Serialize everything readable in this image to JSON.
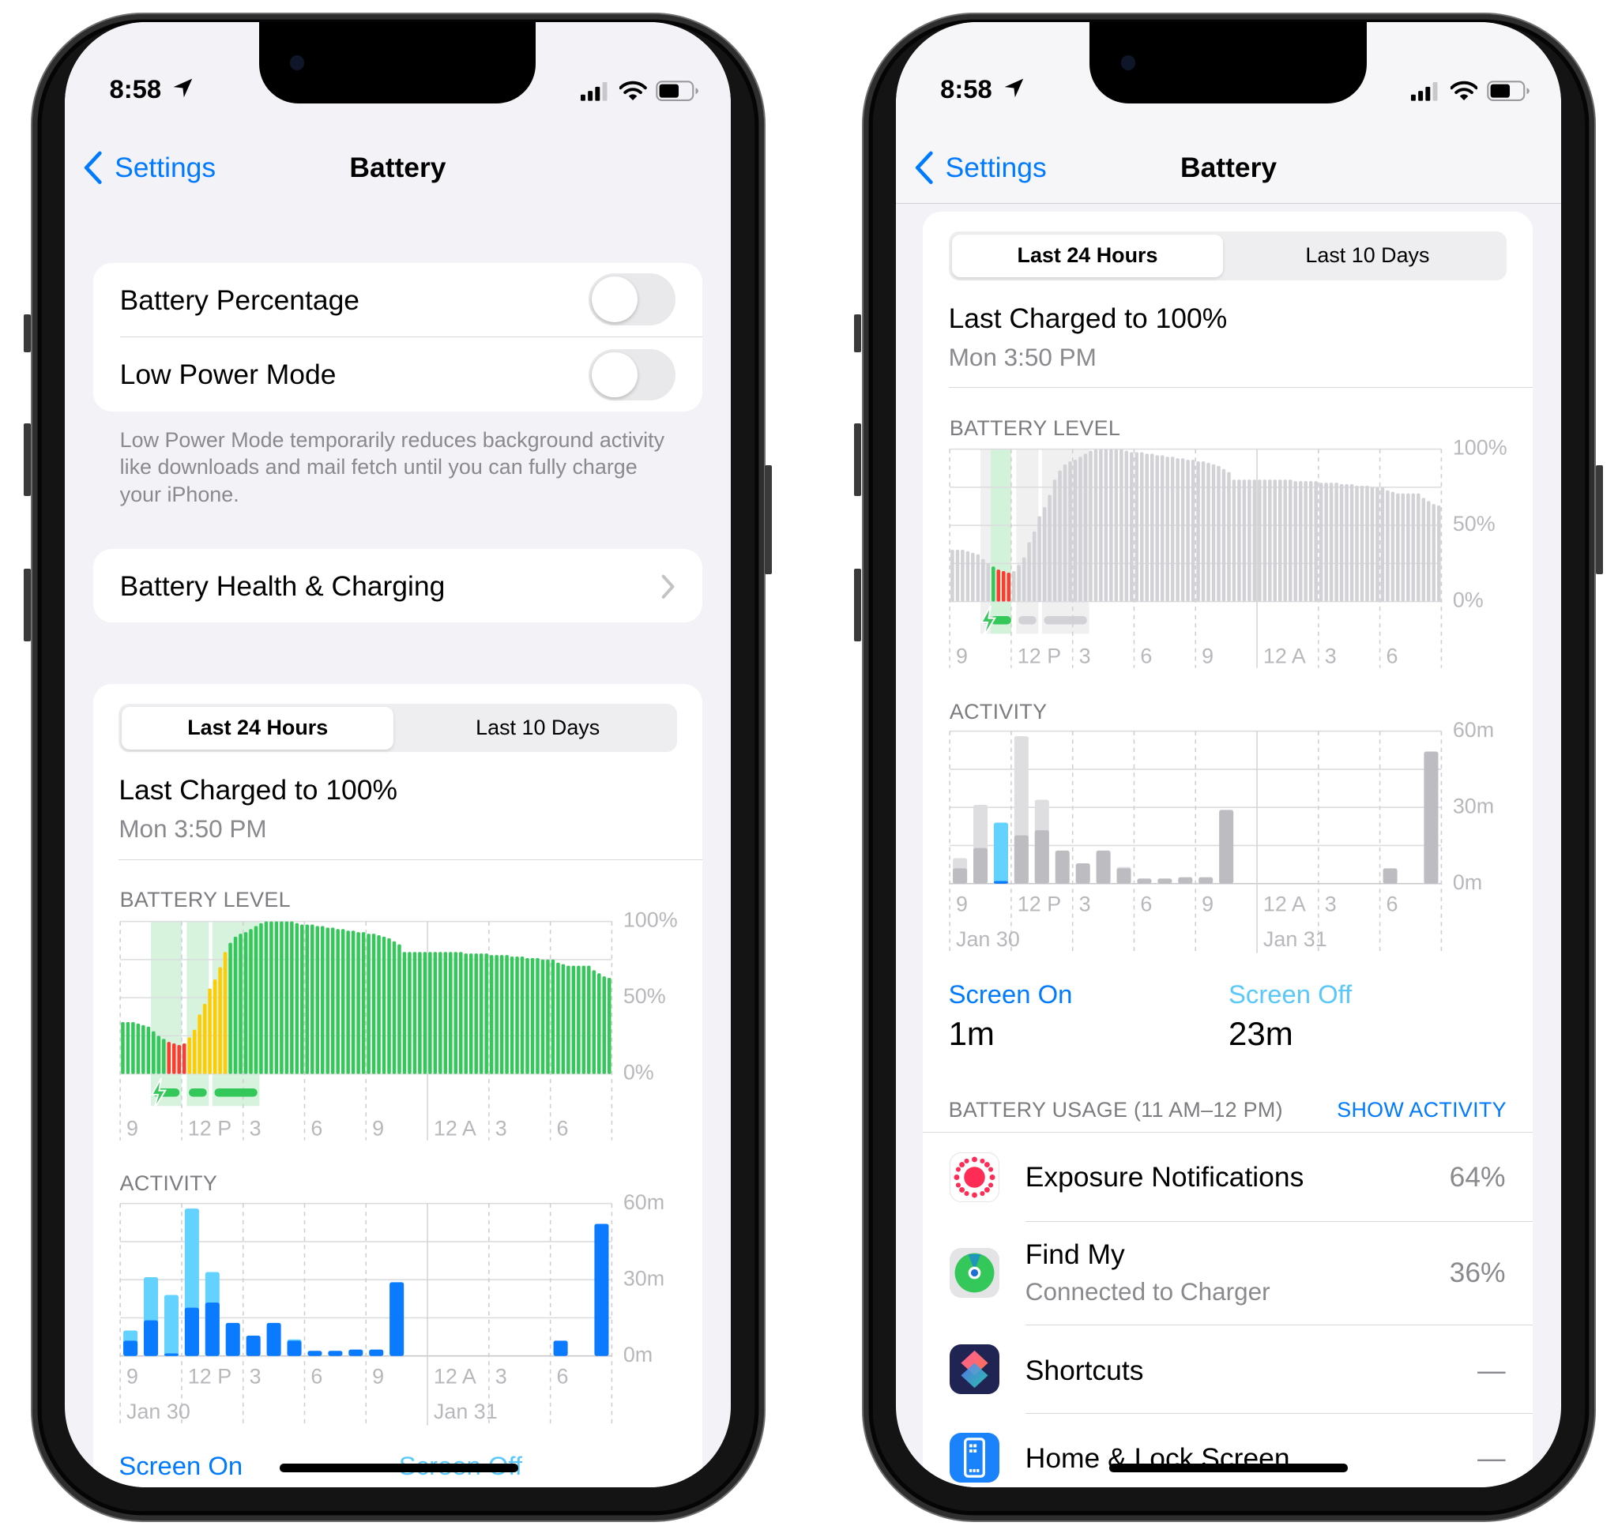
{
  "status": {
    "time": "8:58",
    "battery_fill": 0.62
  },
  "nav": {
    "back": "Settings",
    "title": "Battery"
  },
  "toggles": [
    {
      "label": "Battery Percentage",
      "on": false
    },
    {
      "label": "Low Power Mode",
      "on": false
    }
  ],
  "low_power_footer": "Low Power Mode temporarily reduces background activity like downloads and mail fetch until you can fully charge your iPhone.",
  "health_row": "Battery Health & Charging",
  "segments": [
    "Last 24 Hours",
    "Last 10 Days"
  ],
  "selected_segment": "Last 24 Hours",
  "last_charged": {
    "title": "Last Charged to 100%",
    "time": "Mon 3:50 PM"
  },
  "battery_level": {
    "label": "BATTERY LEVEL",
    "type": "bar",
    "y_ticks": [
      "100%",
      "50%",
      "0%"
    ],
    "ylim": [
      0,
      100
    ],
    "x_ticks": [
      "9",
      "12 P",
      "3",
      "6",
      "9",
      "12 A",
      "3",
      "6"
    ],
    "interval": "15 min",
    "values": [
      34,
      34,
      34,
      33,
      32,
      31,
      28,
      25,
      23,
      21,
      20,
      19,
      20,
      24,
      29,
      39,
      46,
      56,
      62,
      70,
      80,
      86,
      90,
      92,
      93,
      95,
      97,
      99,
      100,
      100,
      100,
      100,
      100,
      100,
      99,
      98,
      98,
      98,
      97,
      97,
      96,
      96,
      95,
      95,
      94,
      94,
      93,
      93,
      92,
      92,
      91,
      90,
      89,
      87,
      85,
      80,
      80,
      80,
      80,
      80,
      80,
      80,
      80,
      80,
      80,
      80,
      80,
      79,
      79,
      79,
      79,
      79,
      78,
      78,
      78,
      78,
      77,
      77,
      77,
      76,
      76,
      76,
      75,
      75,
      75,
      73,
      72,
      71,
      71,
      71,
      71,
      71,
      68,
      66,
      64,
      63
    ],
    "low_battery_bars": [
      9,
      10,
      11,
      12
    ],
    "low_power_bars": [
      13,
      14,
      15,
      16,
      17,
      18,
      19,
      20
    ],
    "charging_periods_hours": [
      [
        10.5,
        12.0
      ],
      [
        12.25,
        13.33
      ],
      [
        13.5,
        15.8
      ]
    ]
  },
  "activity": {
    "label": "ACTIVITY",
    "type": "bar",
    "y_ticks": [
      "60m",
      "30m",
      "0m"
    ],
    "ylim": [
      0,
      60
    ],
    "x_ticks": [
      "9",
      "12 P",
      "3",
      "6",
      "9",
      "12 A",
      "3",
      "6"
    ],
    "dates": [
      "Jan 30",
      "Jan 31"
    ],
    "hours": [
      "9 AM",
      "10 AM",
      "11 AM",
      "12 PM",
      "1 PM",
      "2 PM",
      "3 PM",
      "4 PM",
      "5 PM",
      "6 PM",
      "7 PM",
      "8 PM",
      "9 PM",
      "10 PM",
      "11 PM",
      "12 AM",
      "1 AM",
      "2 AM",
      "3 AM",
      "4 AM",
      "5 AM",
      "6 AM",
      "7 AM",
      "8 AM"
    ],
    "screen_on_min": [
      6,
      14,
      1,
      19,
      21,
      13,
      8,
      13,
      6,
      2,
      2,
      2.5,
      2.5,
      29,
      0,
      0,
      0,
      0,
      0,
      0,
      0,
      6,
      0,
      52
    ],
    "screen_off_min": [
      4,
      17,
      23,
      39,
      12,
      0,
      0,
      0,
      0.5,
      0,
      0,
      0,
      0,
      0,
      0,
      0,
      0,
      0,
      0,
      0,
      0,
      0,
      0,
      0
    ]
  },
  "screen_time": {
    "on_label": "Screen On",
    "on_value": "1m",
    "off_label": "Screen Off",
    "off_value": "23m"
  },
  "usage": {
    "header": "BATTERY USAGE (11 AM–12 PM)",
    "show_activity": "SHOW ACTIVITY",
    "apps": [
      {
        "name": "Exposure Notifications",
        "detail": "",
        "value": "64%",
        "icon": "exposure-notifications-icon"
      },
      {
        "name": "Find My",
        "detail": "Connected to Charger",
        "value": "36%",
        "icon": "find-my-icon"
      },
      {
        "name": "Shortcuts",
        "detail": "",
        "value": "—",
        "icon": "shortcuts-icon"
      },
      {
        "name": "Home & Lock Screen",
        "detail": "",
        "value": "—",
        "icon": "home-lock-screen-icon"
      }
    ]
  },
  "colors": {
    "accent": "#007aff",
    "screen_off": "#5ac8fa",
    "battery_green": "#34c759",
    "battery_red": "#ff3b30",
    "low_power_yellow": "#ffcc00",
    "screen_on_bar": "#0a7aff",
    "screen_off_bar": "#64d2ff",
    "inactive_dark": "#bdbdc1",
    "inactive_light": "#dedee0",
    "charging_shade": "#d3f2da"
  }
}
